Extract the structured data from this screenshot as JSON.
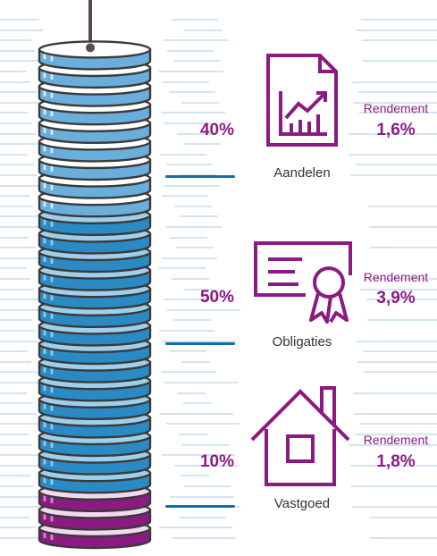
{
  "colors": {
    "accent": "#8b1a82",
    "blue": "#0a72b0",
    "light_blue": "#8cc5e6",
    "line": "#aac8e4"
  },
  "coin_stack": {
    "white_coins": 9,
    "blue_coins": 15,
    "purple_coins": 3
  },
  "categories": [
    {
      "name": "Aandelen",
      "percent": "40%",
      "rendement_label": "Rendement",
      "rendement_value": "1,6%",
      "icon": "document-chart-icon"
    },
    {
      "name": "Obligaties",
      "percent": "50%",
      "rendement_label": "Rendement",
      "rendement_value": "3,9%",
      "icon": "certificate-icon"
    },
    {
      "name": "Vastgoed",
      "percent": "10%",
      "rendement_label": "Rendement",
      "rendement_value": "1,8%",
      "icon": "house-icon"
    }
  ]
}
